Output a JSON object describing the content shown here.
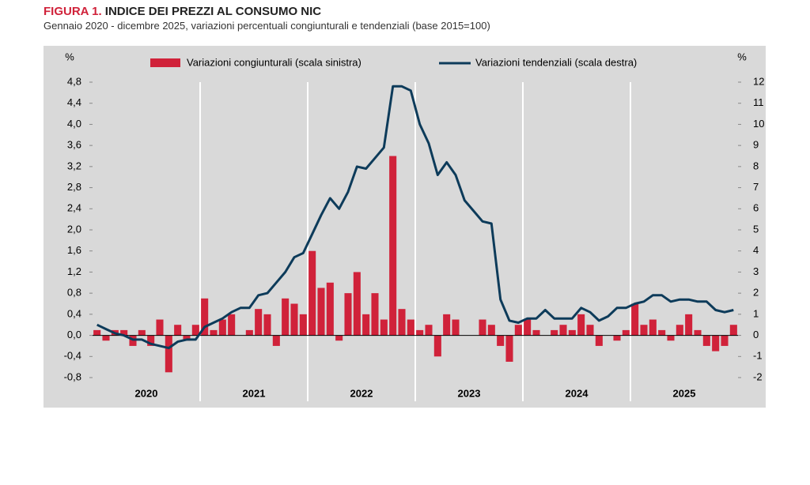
{
  "chart_data": {
    "type": "bar-line",
    "title_prefix": "FIGURA 1.",
    "title": "INDICE DEI PREZZI AL CONSUMO NIC",
    "subtitle": "Gennaio 2020 - dicembre 2025, variazioni percentuali congiunturali e tendenziali (base 2015=100)",
    "y_unit": "%",
    "y2_unit": "%",
    "years": [
      "2020",
      "2021",
      "2022",
      "2023",
      "2024",
      "2025"
    ],
    "ylim": [
      -0.8,
      4.8
    ],
    "yticks": [
      {
        "value": -0.8,
        "label": "-0,8"
      },
      {
        "value": -0.4,
        "label": "-0,4"
      },
      {
        "value": 0,
        "label": "0,0"
      },
      {
        "value": 0.4,
        "label": "0,4"
      },
      {
        "value": 0.8,
        "label": "0,8"
      },
      {
        "value": 1.2,
        "label": "1,2"
      },
      {
        "value": 1.6,
        "label": "1,6"
      },
      {
        "value": 2.0,
        "label": "2,0"
      },
      {
        "value": 2.4,
        "label": "2,4"
      },
      {
        "value": 2.8,
        "label": "2,8"
      },
      {
        "value": 3.2,
        "label": "3,2"
      },
      {
        "value": 3.6,
        "label": "3,6"
      },
      {
        "value": 4.0,
        "label": "4,0"
      },
      {
        "value": 4.4,
        "label": "4,4"
      },
      {
        "value": 4.8,
        "label": "4,8"
      }
    ],
    "y2lim": [
      -2,
      12
    ],
    "y2ticks": [
      -2,
      -1,
      0,
      1,
      2,
      3,
      4,
      5,
      6,
      7,
      8,
      9,
      10,
      11,
      12
    ],
    "series": [
      {
        "name": "Variazioni congiunturali (scala sinistra)",
        "type": "bar",
        "color": "#d0223a",
        "values": [
          0.1,
          -0.1,
          0.1,
          0.1,
          -0.2,
          0.1,
          -0.2,
          0.3,
          -0.7,
          0.2,
          -0.1,
          0.2,
          0.7,
          0.1,
          0.3,
          0.4,
          0.0,
          0.1,
          0.5,
          0.4,
          -0.2,
          0.7,
          0.6,
          0.4,
          1.6,
          0.9,
          1.0,
          -0.1,
          0.8,
          1.2,
          0.4,
          0.8,
          0.3,
          3.4,
          0.5,
          0.3,
          0.1,
          0.2,
          -0.4,
          0.4,
          0.3,
          0.0,
          0.0,
          0.3,
          0.2,
          -0.2,
          -0.5,
          0.2,
          0.3,
          0.1,
          0.0,
          0.1,
          0.2,
          0.1,
          0.4,
          0.2,
          -0.2,
          0.0,
          -0.1,
          0.1,
          0.6,
          0.2,
          0.3,
          0.1,
          -0.1,
          0.2,
          0.4,
          0.1,
          -0.2,
          -0.3,
          -0.2,
          0.2
        ]
      },
      {
        "name": "Variazioni tendenziali (scala destra)",
        "type": "line",
        "axis": "y2",
        "color": "#0d3b5a",
        "values": [
          0.5,
          0.3,
          0.1,
          0.0,
          -0.2,
          -0.2,
          -0.4,
          -0.5,
          -0.6,
          -0.3,
          -0.2,
          -0.2,
          0.4,
          0.6,
          0.8,
          1.1,
          1.3,
          1.3,
          1.9,
          2.0,
          2.5,
          3.0,
          3.7,
          3.9,
          4.8,
          5.7,
          6.5,
          6.0,
          6.8,
          8.0,
          7.9,
          8.4,
          8.9,
          11.8,
          11.8,
          11.6,
          10.0,
          9.1,
          7.6,
          8.2,
          7.6,
          6.4,
          5.9,
          5.4,
          5.3,
          1.7,
          0.7,
          0.6,
          0.8,
          0.8,
          1.2,
          0.8,
          0.8,
          0.8,
          1.3,
          1.1,
          0.7,
          0.9,
          1.3,
          1.3,
          1.5,
          1.6,
          1.9,
          1.9,
          1.6,
          1.7,
          1.7,
          1.6,
          1.6,
          1.2,
          1.1,
          1.2
        ]
      }
    ]
  }
}
